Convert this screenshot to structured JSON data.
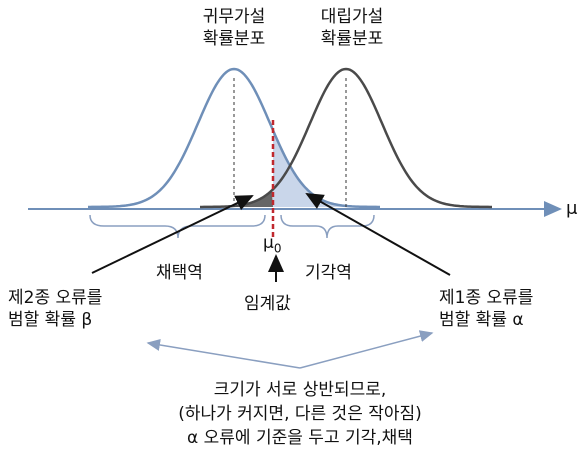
{
  "null_hypothesis_label": [
    "귀무가설",
    "확률분포"
  ],
  "alt_hypothesis_label": [
    "대립가설",
    "확률분포"
  ],
  "axis_label": "μ",
  "mu0_symbol": "μ",
  "mu0_subscript": "0",
  "acceptance_region": "채택역",
  "rejection_region": "기각역",
  "critical_value": "임계값",
  "type2_error": [
    "제2종 오류를",
    "범할 확률 β"
  ],
  "type1_error": [
    "제1종 오류를",
    "범할 확률 α"
  ],
  "note": [
    "크기가 서로 상반되므로,",
    "(하나가 커지면, 다른 것은 작아짐)",
    "α 오류에 기준을 두고 기각,채택"
  ],
  "colors": {
    "null_curve": "#6f8fb8",
    "alt_curve": "#4a4a4a",
    "alpha_fill": "#c9d6ea",
    "beta_fill": "#666666",
    "critical_line": "#c0282e",
    "axis": "#6f8fb8",
    "bracket": "#8a9fc0"
  }
}
